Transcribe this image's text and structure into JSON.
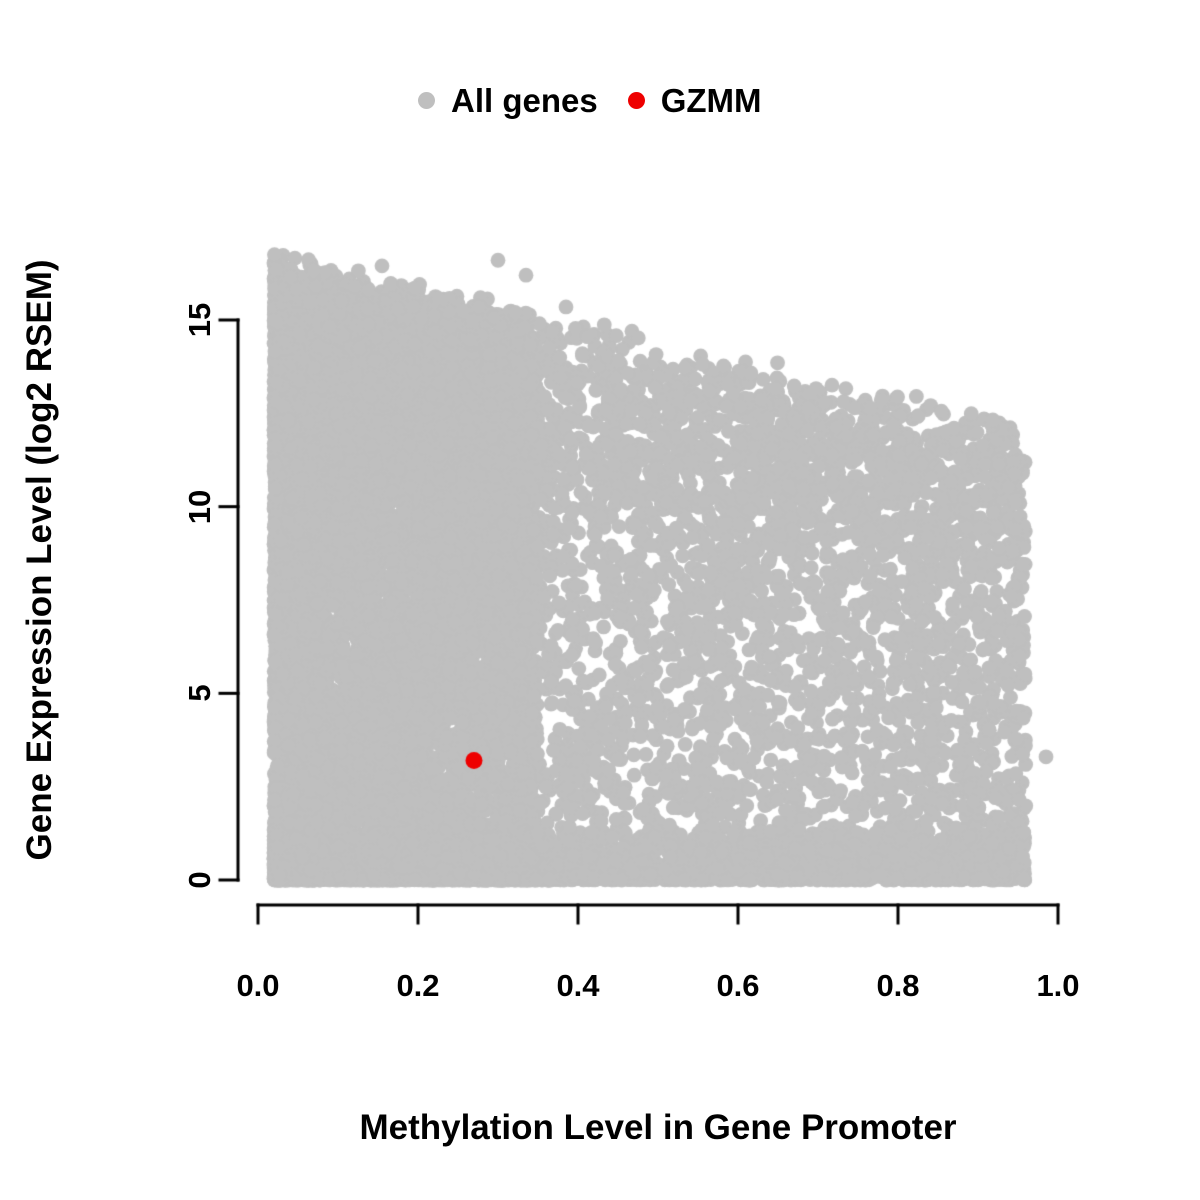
{
  "chart_data": {
    "type": "scatter",
    "title": "",
    "xlabel": "Methylation Level in Gene Promoter",
    "ylabel": "Gene Expression Level (log2 RSEM)",
    "xlim": [
      0.0,
      1.0
    ],
    "ylim": [
      0,
      16.8
    ],
    "x_ticks": [
      "0.0",
      "0.2",
      "0.4",
      "0.6",
      "0.8",
      "1.0"
    ],
    "x_tick_values": [
      0.0,
      0.2,
      0.4,
      0.6,
      0.8,
      1.0
    ],
    "y_ticks": [
      "0",
      "5",
      "10",
      "15"
    ],
    "y_tick_values": [
      0,
      5,
      10,
      15
    ],
    "grid": false,
    "legend_position": "top",
    "legend": [
      {
        "label": "All genes",
        "color": "#bfbfbf"
      },
      {
        "label": "GZMM",
        "color": "#ee0000"
      }
    ],
    "series": [
      {
        "name": "All genes",
        "color": "#bfbfbf",
        "point_radius": 7.4,
        "generator": {
          "seed": 20240601,
          "n": 15000,
          "x_left_frac": 0.55,
          "x_left_min": 0.02,
          "x_left_span": 0.33,
          "x_left_pow": 1.4,
          "x_min": 0.02,
          "x_max": 0.96,
          "envelope_at_0": 16.4,
          "envelope_slope": 4.8,
          "envelope_jitter": 1.2,
          "bottom_frac": 0.22,
          "bottom_max": 1.3,
          "top_frac": 0.12
        },
        "outlier_points": [
          [
            0.3,
            16.6
          ],
          [
            0.385,
            15.35
          ],
          [
            0.335,
            16.2
          ],
          [
            0.985,
            3.3
          ],
          [
            0.87,
            12.1
          ],
          [
            0.155,
            16.45
          ]
        ]
      },
      {
        "name": "GZMM",
        "color": "#ee0000",
        "point_radius": 8.5,
        "points": [
          [
            0.27,
            3.2
          ]
        ]
      }
    ]
  }
}
